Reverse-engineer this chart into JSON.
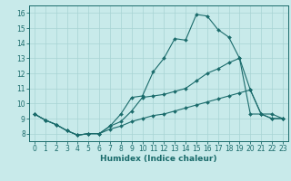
{
  "xlabel": "Humidex (Indice chaleur)",
  "xlim": [
    -0.5,
    23.5
  ],
  "ylim": [
    7.5,
    16.5
  ],
  "xticks": [
    0,
    1,
    2,
    3,
    4,
    5,
    6,
    7,
    8,
    9,
    10,
    11,
    12,
    13,
    14,
    15,
    16,
    17,
    18,
    19,
    20,
    21,
    22,
    23
  ],
  "yticks": [
    8,
    9,
    10,
    11,
    12,
    13,
    14,
    15,
    16
  ],
  "bg_color": "#c8eaea",
  "line_color": "#1a6b6b",
  "grid_color": "#a8d4d4",
  "line1_y": [
    9.3,
    8.9,
    8.6,
    8.2,
    7.9,
    8.0,
    8.0,
    8.5,
    9.3,
    10.4,
    10.5,
    12.1,
    13.0,
    14.3,
    14.2,
    15.9,
    15.8,
    14.9,
    14.4,
    13.0,
    9.3,
    9.3,
    9.0,
    9.0
  ],
  "line2_y": [
    9.3,
    8.9,
    8.6,
    8.2,
    7.9,
    8.0,
    8.0,
    8.5,
    8.8,
    9.5,
    10.4,
    10.5,
    10.6,
    10.8,
    11.0,
    11.5,
    12.0,
    12.3,
    12.7,
    13.0,
    10.9,
    9.3,
    9.3,
    9.0
  ],
  "line3_y": [
    9.3,
    8.9,
    8.6,
    8.2,
    7.9,
    8.0,
    8.0,
    8.3,
    8.5,
    8.8,
    9.0,
    9.2,
    9.3,
    9.5,
    9.7,
    9.9,
    10.1,
    10.3,
    10.5,
    10.7,
    10.9,
    9.3,
    9.0,
    9.0
  ]
}
